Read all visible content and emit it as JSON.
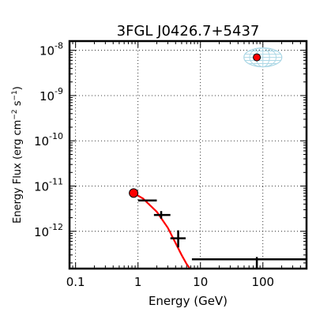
{
  "chart_data": {
    "type": "scatter",
    "title": "3FGL J0426.7+5437",
    "xlabel": "Energy (GeV)",
    "ylabel_main": "Energy Flux (erg cm",
    "ylabel_sup1": "−2",
    "ylabel_mid": " s",
    "ylabel_sup2": "−1",
    "ylabel_end": ")",
    "x_scale": "log",
    "y_scale": "log",
    "xlim": [
      0.08,
      500
    ],
    "ylim": [
      1.5e-13,
      1.6e-08
    ],
    "grid": true,
    "x_ticks": [
      {
        "value": 0.1,
        "label": "0.1"
      },
      {
        "value": 1,
        "label": "1"
      },
      {
        "value": 10,
        "label": "10"
      },
      {
        "value": 100,
        "label": "100"
      }
    ],
    "y_ticks": [
      {
        "value": 1e-12,
        "base": "10",
        "exp": "-12"
      },
      {
        "value": 1e-11,
        "base": "10",
        "exp": "-11"
      },
      {
        "value": 1e-10,
        "base": "10",
        "exp": "-10"
      },
      {
        "value": 1e-09,
        "base": "10",
        "exp": "-9"
      },
      {
        "value": 1e-08,
        "base": "10",
        "exp": "-8"
      }
    ],
    "flux_points": [
      {
        "x": 1.45,
        "x_low": 1.0,
        "x_high": 2.0,
        "y": 4.8e-12,
        "y_low": 4.6e-12,
        "y_high": 5e-12
      },
      {
        "x": 2.35,
        "x_low": 1.8,
        "x_high": 3.3,
        "y": 2.3e-12,
        "y_low": 1.9e-12,
        "y_high": 2.8e-12
      },
      {
        "x": 4.4,
        "x_low": 3.3,
        "x_high": 5.8,
        "y": 7e-13,
        "y_low": 4.4e-13,
        "y_high": 1.05e-12
      }
    ],
    "upper_limit": {
      "x_low": 7.3,
      "x_high": 500,
      "x_mark": 80,
      "y": 2.4e-13
    },
    "model_curve": {
      "color": "#ff0000",
      "points": [
        [
          0.85,
          7e-12
        ],
        [
          1.2,
          5.3e-12
        ],
        [
          2.0,
          2.7e-12
        ],
        [
          3.0,
          1.2e-12
        ],
        [
          4.0,
          5.5e-13
        ],
        [
          5.0,
          3e-13
        ],
        [
          6.0,
          1.9e-13
        ],
        [
          6.8,
          1.5e-13
        ]
      ]
    },
    "markers": [
      {
        "x": 0.85,
        "y": 7e-12,
        "color": "#ff0000"
      },
      {
        "x": 80,
        "y": 7e-09,
        "color": "#ff0000"
      }
    ],
    "localization_ellipse": {
      "x_center": 100,
      "y_center": 7e-09,
      "color": "#add8e6"
    }
  }
}
